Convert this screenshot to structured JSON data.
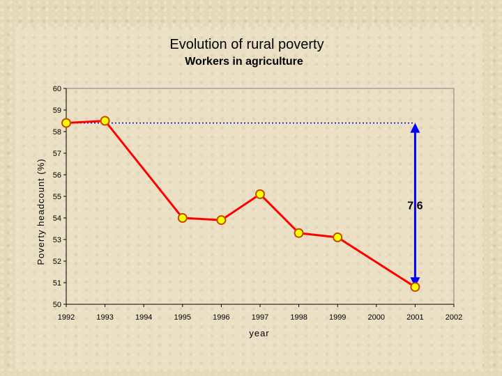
{
  "chart_data": {
    "type": "line",
    "title": "Evolution of rural poverty",
    "subtitle": "Workers in agriculture",
    "xlabel": "year",
    "ylabel": "Poverty headcount (%)",
    "xlim": [
      1992,
      2002
    ],
    "ylim": [
      50,
      60
    ],
    "x_ticks": [
      "1992",
      "1993",
      "1994",
      "1995",
      "1996",
      "1997",
      "1998",
      "1999",
      "2000",
      "2001",
      "2002"
    ],
    "y_ticks": [
      "50",
      "51",
      "52",
      "53",
      "54",
      "55",
      "56",
      "57",
      "58",
      "59",
      "60"
    ],
    "grid": false,
    "series": [
      {
        "x": [
          1992,
          1993,
          1995,
          1996,
          1997,
          1998,
          1999,
          2001
        ],
        "y": [
          58.4,
          58.5,
          54.0,
          53.9,
          55.1,
          53.3,
          53.1,
          50.8
        ]
      }
    ],
    "annotation": {
      "label": "7.6",
      "from_value": 58.4,
      "to_value": 50.8,
      "at_x": 2001
    },
    "colors": {
      "line": "#ff0000",
      "marker_fill": "#ffff00",
      "marker_edge": "#c05000",
      "reference_line": "#0000cc",
      "arrow": "#0000ff"
    }
  }
}
